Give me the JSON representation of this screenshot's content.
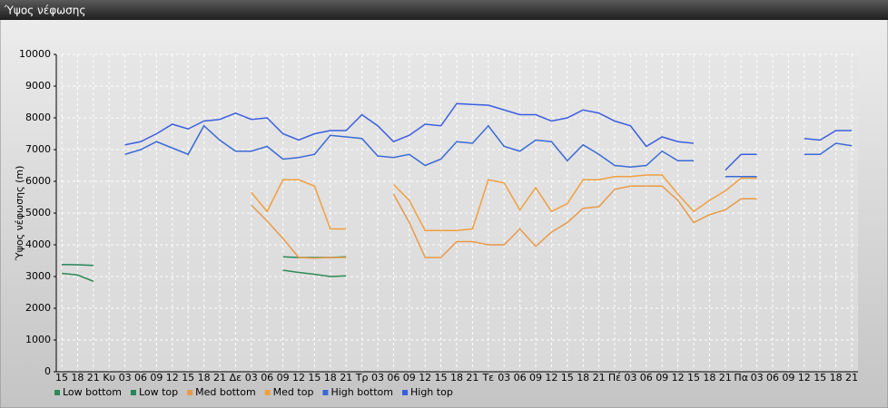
{
  "chart_data": {
    "type": "line",
    "title": "Ύψος νέφωσης",
    "y_label": "Ύψος νέφωσης (m)",
    "categories": [
      "15",
      "18",
      "21",
      "Κυ",
      "03",
      "06",
      "09",
      "12",
      "15",
      "18",
      "21",
      "Δε",
      "03",
      "06",
      "09",
      "12",
      "15",
      "18",
      "21",
      "Τρ",
      "03",
      "06",
      "09",
      "12",
      "15",
      "18",
      "21",
      "Τε",
      "03",
      "06",
      "09",
      "12",
      "15",
      "18",
      "21",
      "Πέ",
      "03",
      "06",
      "09",
      "12",
      "15",
      "18",
      "21",
      "Πα",
      "03",
      "06",
      "09",
      "12",
      "15",
      "18",
      "21"
    ],
    "ylim": [
      0,
      10000
    ],
    "yticks": [
      0,
      1000,
      2000,
      3000,
      4000,
      5000,
      6000,
      7000,
      8000,
      9000,
      10000
    ],
    "grid": true,
    "series": [
      {
        "name": "Low bottom",
        "color": "#2e8b57",
        "values": [
          3100,
          3050,
          2850,
          null,
          null,
          null,
          null,
          null,
          null,
          null,
          null,
          null,
          null,
          null,
          3200,
          3130,
          3070,
          3000,
          3020,
          null,
          null,
          null,
          null,
          null,
          null,
          null,
          null,
          null,
          null,
          null,
          null,
          null,
          null,
          null,
          null,
          null,
          null,
          null,
          null,
          null,
          null,
          null,
          null,
          null,
          null,
          null,
          null,
          null,
          null,
          null,
          null
        ]
      },
      {
        "name": "Low top",
        "color": "#23875a",
        "values": [
          3380,
          3370,
          3350,
          null,
          null,
          null,
          null,
          null,
          null,
          null,
          null,
          null,
          null,
          null,
          3620,
          3600,
          3600,
          3600,
          3620,
          null,
          null,
          null,
          null,
          null,
          null,
          null,
          null,
          null,
          null,
          null,
          null,
          null,
          null,
          null,
          null,
          null,
          null,
          null,
          null,
          null,
          null,
          null,
          null,
          null,
          null,
          null,
          null,
          null,
          null,
          null,
          null
        ]
      },
      {
        "name": "Med bottom",
        "color": "#e89a48",
        "values": [
          null,
          null,
          null,
          null,
          null,
          null,
          null,
          null,
          null,
          null,
          null,
          null,
          5250,
          4750,
          4200,
          3600,
          3580,
          3600,
          3600,
          null,
          null,
          5600,
          4700,
          3600,
          3600,
          4100,
          4100,
          4000,
          4000,
          4500,
          3950,
          4400,
          4700,
          5150,
          5200,
          5750,
          5850,
          5850,
          5850,
          5400,
          4700,
          4950,
          5100,
          5450,
          5450,
          null,
          null,
          null,
          null,
          null,
          null
        ]
      },
      {
        "name": "Med top",
        "color": "#f0a040",
        "values": [
          null,
          null,
          null,
          null,
          null,
          null,
          null,
          null,
          null,
          null,
          null,
          null,
          5650,
          5050,
          6050,
          6050,
          5850,
          4500,
          4500,
          null,
          null,
          5900,
          5400,
          4450,
          4450,
          4450,
          4500,
          6050,
          5950,
          5100,
          5800,
          5050,
          5300,
          6050,
          6050,
          6150,
          6150,
          6200,
          6200,
          5600,
          5050,
          5400,
          5700,
          6100,
          6100,
          null,
          null,
          null,
          null,
          null,
          null
        ]
      },
      {
        "name": "High bottom",
        "color": "#3a6ad6",
        "values": [
          null,
          null,
          null,
          null,
          6850,
          7000,
          7250,
          7050,
          6850,
          7750,
          7300,
          6950,
          6950,
          7100,
          6700,
          6750,
          6850,
          7450,
          7400,
          7350,
          6800,
          6750,
          6850,
          6500,
          6700,
          7250,
          7200,
          7750,
          7100,
          6950,
          7300,
          7250,
          6650,
          7150,
          6850,
          6500,
          6450,
          6500,
          6950,
          6650,
          6650,
          null,
          6150,
          6150,
          6150,
          null,
          null,
          6850,
          6850,
          7200,
          7120
        ]
      },
      {
        "name": "High top",
        "color": "#3a5ee0",
        "values": [
          null,
          null,
          null,
          null,
          7150,
          7250,
          7500,
          7800,
          7650,
          7900,
          7950,
          8150,
          7950,
          8000,
          7500,
          7300,
          7500,
          7600,
          7600,
          8100,
          7750,
          7250,
          7450,
          7800,
          7750,
          8450,
          8420,
          8400,
          8250,
          8100,
          8100,
          7900,
          8000,
          8250,
          8150,
          7900,
          7750,
          7100,
          7400,
          7250,
          7200,
          null,
          6350,
          6850,
          6850,
          null,
          null,
          7350,
          7300,
          7600,
          7600
        ]
      }
    ]
  }
}
